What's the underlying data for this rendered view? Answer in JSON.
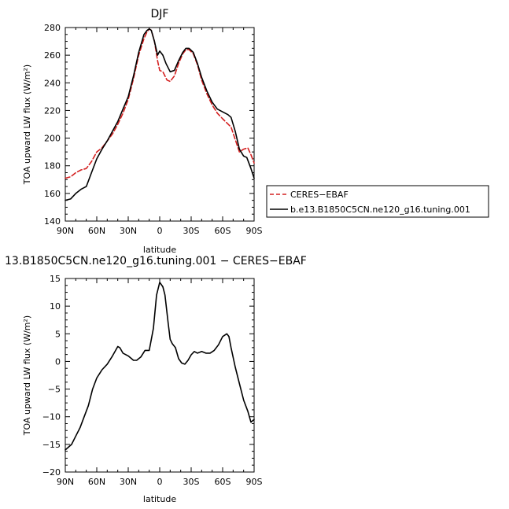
{
  "chart_data": [
    {
      "type": "line",
      "title": "DJF",
      "xlabel": "latitude",
      "ylabel": "TOA upward LW flux (W/m²)",
      "xlim": [
        -90,
        90
      ],
      "ylim": [
        140,
        280
      ],
      "x_ticks": [
        -90,
        -60,
        -30,
        0,
        30,
        60,
        90
      ],
      "x_tick_labels": [
        "90N",
        "60N",
        "30N",
        "0",
        "30S",
        "60S",
        "90S"
      ],
      "y_ticks": [
        140,
        160,
        180,
        200,
        220,
        240,
        260,
        280
      ],
      "y_tick_labels": [
        "140",
        "160",
        "180",
        "200",
        "220",
        "240",
        "260",
        "280"
      ],
      "legend_position": "right",
      "series": [
        {
          "name": "CERES−EBAF",
          "color": "#d42020",
          "dash": "dashed",
          "points": [
            [
              -90,
              171
            ],
            [
              -85,
              172
            ],
            [
              -80,
              175
            ],
            [
              -75,
              177
            ],
            [
              -70,
              178
            ],
            [
              -65,
              183
            ],
            [
              -60,
              190
            ],
            [
              -55,
              193
            ],
            [
              -50,
              198
            ],
            [
              -45,
              203
            ],
            [
              -40,
              210
            ],
            [
              -35,
              218
            ],
            [
              -30,
              228
            ],
            [
              -25,
              243
            ],
            [
              -20,
              260
            ],
            [
              -15,
              272
            ],
            [
              -12,
              277
            ],
            [
              -10,
              279
            ],
            [
              -8,
              278
            ],
            [
              -5,
              270
            ],
            [
              -2,
              256
            ],
            [
              0,
              249
            ],
            [
              3,
              248
            ],
            [
              7,
              242
            ],
            [
              10,
              241
            ],
            [
              14,
              245
            ],
            [
              18,
              254
            ],
            [
              22,
              261
            ],
            [
              25,
              264
            ],
            [
              28,
              264
            ],
            [
              32,
              261
            ],
            [
              36,
              253
            ],
            [
              40,
              242
            ],
            [
              45,
              232
            ],
            [
              50,
              224
            ],
            [
              55,
              218
            ],
            [
              60,
              214
            ],
            [
              64,
              211
            ],
            [
              68,
              208
            ],
            [
              72,
              199
            ],
            [
              76,
              190
            ],
            [
              80,
              192
            ],
            [
              84,
              193
            ],
            [
              87,
              188
            ],
            [
              90,
              182
            ]
          ]
        },
        {
          "name": "b.e13.B1850C5CN.ne120_g16.tuning.001",
          "color": "#000000",
          "dash": "solid",
          "points": [
            [
              -90,
              155
            ],
            [
              -85,
              156
            ],
            [
              -80,
              160
            ],
            [
              -75,
              163
            ],
            [
              -70,
              165
            ],
            [
              -65,
              175
            ],
            [
              -60,
              185
            ],
            [
              -55,
              192
            ],
            [
              -50,
              198
            ],
            [
              -45,
              205
            ],
            [
              -40,
              212
            ],
            [
              -35,
              221
            ],
            [
              -30,
              230
            ],
            [
              -25,
              245
            ],
            [
              -20,
              262
            ],
            [
              -15,
              275
            ],
            [
              -12,
              278
            ],
            [
              -10,
              279
            ],
            [
              -8,
              278
            ],
            [
              -5,
              270
            ],
            [
              -2,
              260
            ],
            [
              0,
              263
            ],
            [
              3,
              260
            ],
            [
              6,
              254
            ],
            [
              10,
              248
            ],
            [
              14,
              249
            ],
            [
              18,
              256
            ],
            [
              22,
              262
            ],
            [
              25,
              265
            ],
            [
              28,
              265
            ],
            [
              32,
              262
            ],
            [
              36,
              254
            ],
            [
              40,
              244
            ],
            [
              45,
              234
            ],
            [
              50,
              226
            ],
            [
              55,
              221
            ],
            [
              60,
              219
            ],
            [
              65,
              217
            ],
            [
              68,
              215
            ],
            [
              72,
              205
            ],
            [
              76,
              192
            ],
            [
              80,
              187
            ],
            [
              83,
              186
            ],
            [
              87,
              178
            ],
            [
              90,
              171
            ]
          ]
        }
      ]
    },
    {
      "type": "line",
      "title": "13.B1850C5CN.ne120_g16.tuning.001  −  CERES−EBAF",
      "xlabel": "latitude",
      "ylabel": "TOA upward LW flux (W/m²)",
      "xlim": [
        -90,
        90
      ],
      "ylim": [
        -20,
        15
      ],
      "x_ticks": [
        -90,
        -60,
        -30,
        0,
        30,
        60,
        90
      ],
      "x_tick_labels": [
        "90N",
        "60N",
        "30N",
        "0",
        "30S",
        "60S",
        "90S"
      ],
      "y_ticks": [
        -20,
        -15,
        -10,
        -5,
        0,
        5,
        10,
        15
      ],
      "y_tick_labels": [
        "−20",
        "−15",
        "−10",
        "−5",
        "0",
        "5",
        "10",
        "15"
      ],
      "series": [
        {
          "color": "#000000",
          "dash": "solid",
          "points": [
            [
              -90,
              -16
            ],
            [
              -87,
              -15.5
            ],
            [
              -84,
              -15
            ],
            [
              -80,
              -13.5
            ],
            [
              -76,
              -12
            ],
            [
              -72,
              -10
            ],
            [
              -68,
              -8
            ],
            [
              -64,
              -5
            ],
            [
              -60,
              -3
            ],
            [
              -55,
              -1.5
            ],
            [
              -50,
              -0.5
            ],
            [
              -45,
              1
            ],
            [
              -40,
              2.7
            ],
            [
              -38,
              2.5
            ],
            [
              -35,
              1.5
            ],
            [
              -30,
              1
            ],
            [
              -25,
              0.2
            ],
            [
              -22,
              0.2
            ],
            [
              -18,
              0.8
            ],
            [
              -14,
              2
            ],
            [
              -10,
              2
            ],
            [
              -6,
              6
            ],
            [
              -3,
              12
            ],
            [
              0,
              14.3
            ],
            [
              3,
              13.5
            ],
            [
              5,
              12
            ],
            [
              8,
              7
            ],
            [
              10,
              4
            ],
            [
              12,
              3.2
            ],
            [
              15,
              2.5
            ],
            [
              18,
              0.5
            ],
            [
              21,
              -0.3
            ],
            [
              24,
              -0.5
            ],
            [
              27,
              0.2
            ],
            [
              30,
              1.2
            ],
            [
              33,
              1.8
            ],
            [
              36,
              1.5
            ],
            [
              40,
              1.8
            ],
            [
              44,
              1.5
            ],
            [
              48,
              1.5
            ],
            [
              52,
              2
            ],
            [
              56,
              3
            ],
            [
              60,
              4.5
            ],
            [
              64,
              5
            ],
            [
              66,
              4.5
            ],
            [
              68,
              2.5
            ],
            [
              72,
              -1
            ],
            [
              76,
              -4
            ],
            [
              80,
              -7
            ],
            [
              84,
              -9
            ],
            [
              87,
              -11
            ],
            [
              90,
              -10.5
            ]
          ]
        }
      ]
    }
  ]
}
